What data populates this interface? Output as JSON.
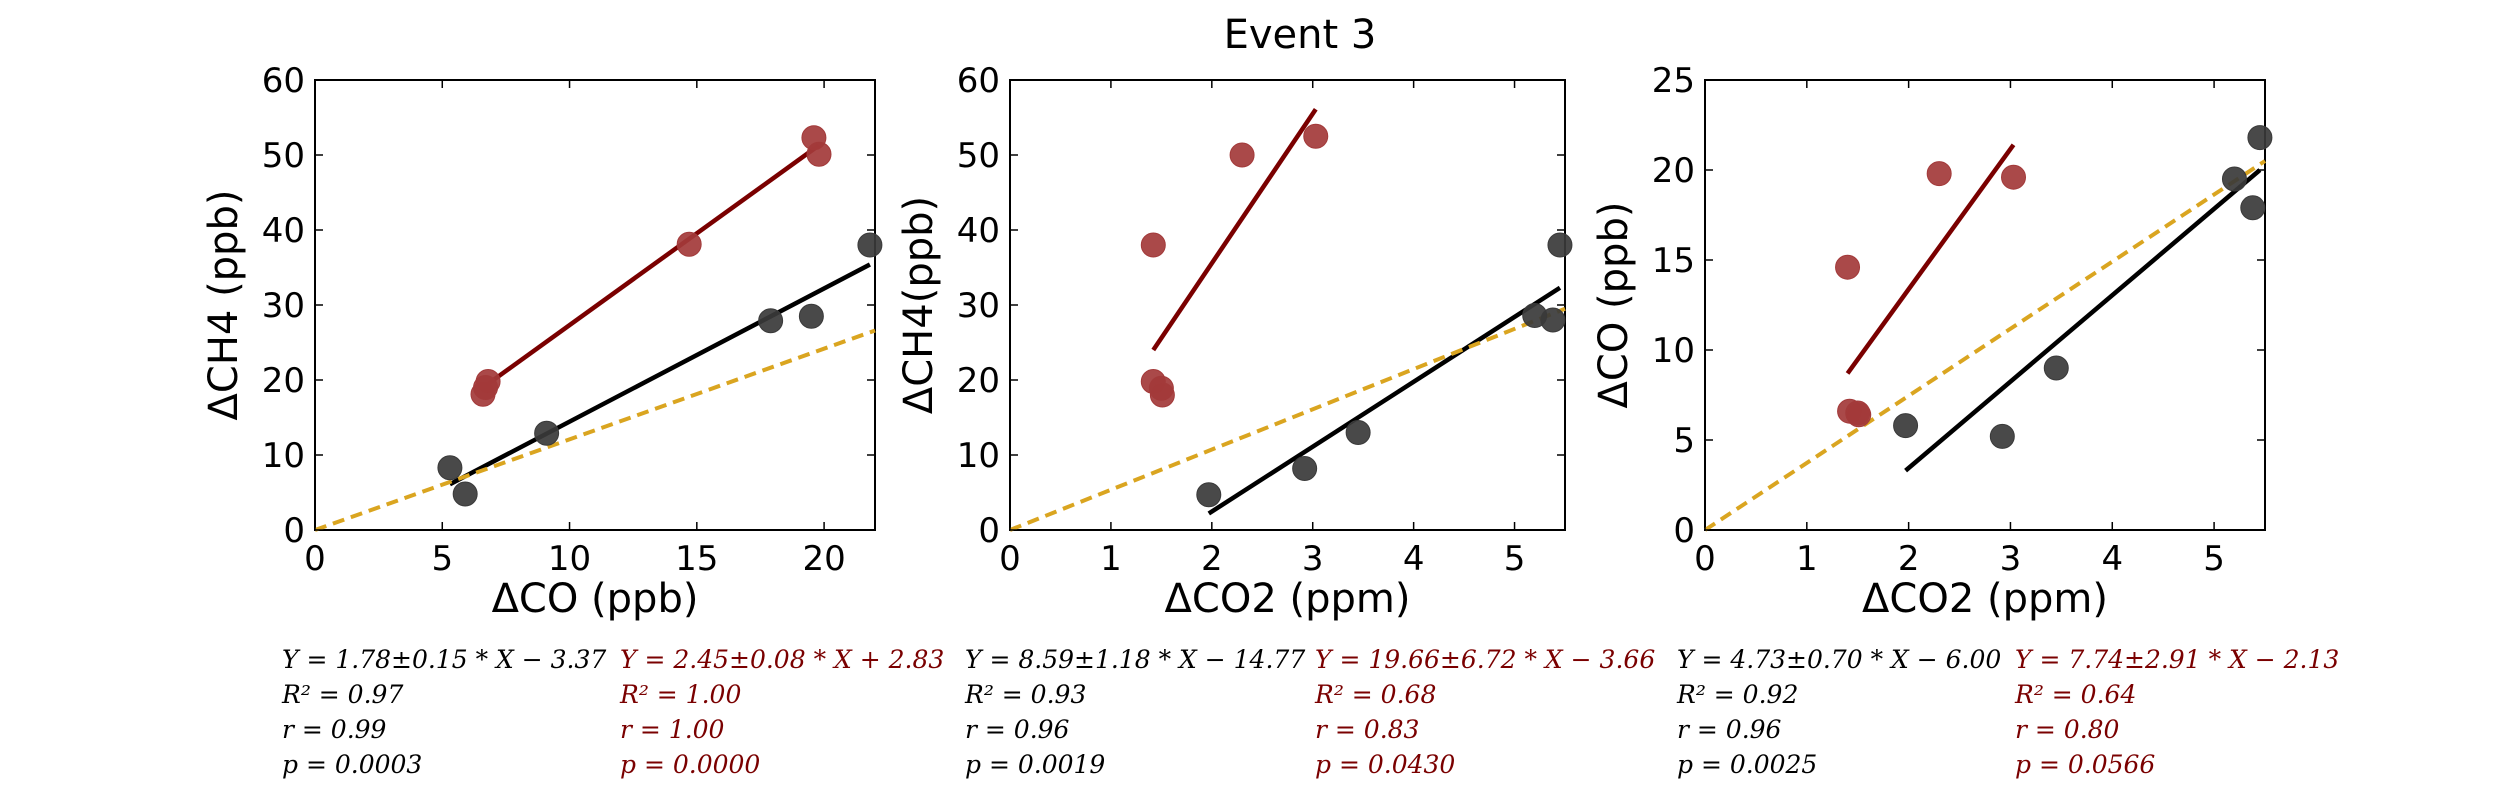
{
  "figure": {
    "title": "Event 3"
  },
  "colors": {
    "black_series": "#3a3a3a",
    "black_fit": "#000000",
    "red_series": "#a33a3a",
    "red_fit": "#7a0000",
    "ref_line": "#daa520"
  },
  "chart_data": [
    {
      "type": "scatter",
      "xlabel": "ΔCO (ppb)",
      "ylabel": "ΔCH4 (ppb)",
      "xlim": [
        0,
        22
      ],
      "ylim": [
        0,
        60
      ],
      "xticks": [
        "0",
        "5",
        "10",
        "15",
        "20"
      ],
      "yticks": [
        "0",
        "10",
        "20",
        "30",
        "40",
        "50",
        "60"
      ],
      "grid": false,
      "series": [
        {
          "color": "#3a3a3a",
          "points": [
            [
              5.3,
              8.3
            ],
            [
              5.9,
              4.8
            ],
            [
              9.1,
              12.9
            ],
            [
              17.9,
              27.9
            ],
            [
              19.5,
              28.5
            ],
            [
              21.8,
              38.0
            ]
          ]
        },
        {
          "color": "#a33a3a",
          "points": [
            [
              6.6,
              18.1
            ],
            [
              6.7,
              19.0
            ],
            [
              6.8,
              19.8
            ],
            [
              14.7,
              38.1
            ],
            [
              19.6,
              52.3
            ],
            [
              19.8,
              50.1
            ]
          ]
        }
      ],
      "fits": [
        {
          "color": "#000000",
          "x": [
            5.3,
            21.8
          ],
          "y": [
            6.1,
            35.4
          ]
        },
        {
          "color": "#7a0000",
          "x": [
            6.6,
            19.8
          ],
          "y": [
            19.0,
            51.3
          ]
        },
        {
          "color": "#daa520",
          "dashed": true,
          "x": [
            0,
            22
          ],
          "y": [
            0,
            26.6
          ]
        }
      ],
      "stats_black": [
        "Y = 1.78±0.15 * X − 3.37",
        "R² = 0.97",
        "r = 0.99",
        "p = 0.0003"
      ],
      "stats_red": [
        "Y = 2.45±0.08 * X + 2.83",
        "R² = 1.00",
        "r = 1.00",
        "p = 0.0000"
      ]
    },
    {
      "type": "scatter",
      "xlabel": "ΔCO2 (ppm)",
      "ylabel": "ΔCH4(ppb)",
      "xlim": [
        0,
        5.5
      ],
      "ylim": [
        0,
        60
      ],
      "xticks": [
        "0",
        "1",
        "2",
        "3",
        "4",
        "5"
      ],
      "yticks": [
        "0",
        "10",
        "20",
        "30",
        "40",
        "50",
        "60"
      ],
      "grid": false,
      "series": [
        {
          "color": "#3a3a3a",
          "points": [
            [
              1.97,
              4.7
            ],
            [
              2.92,
              8.2
            ],
            [
              3.45,
              13.0
            ],
            [
              5.2,
              28.6
            ],
            [
              5.38,
              28.0
            ],
            [
              5.45,
              38.0
            ]
          ]
        },
        {
          "color": "#a33a3a",
          "points": [
            [
              1.42,
              38.0
            ],
            [
              1.42,
              19.8
            ],
            [
              1.5,
              18.9
            ],
            [
              1.51,
              18.0
            ],
            [
              2.3,
              50.0
            ],
            [
              3.03,
              52.5
            ]
          ]
        }
      ],
      "fits": [
        {
          "color": "#000000",
          "x": [
            1.97,
            5.45
          ],
          "y": [
            2.2,
            32.3
          ]
        },
        {
          "color": "#7a0000",
          "x": [
            1.42,
            3.03
          ],
          "y": [
            24.0,
            56.1
          ]
        },
        {
          "color": "#daa520",
          "dashed": true,
          "x": [
            0,
            5.5
          ],
          "y": [
            0,
            29.5
          ]
        }
      ],
      "stats_black": [
        "Y = 8.59±1.18 * X − 14.77",
        "R² = 0.93",
        "r = 0.96",
        "p = 0.0019"
      ],
      "stats_red": [
        "Y = 19.66±6.72 * X − 3.66",
        "R² = 0.68",
        "r = 0.83",
        "p = 0.0430"
      ]
    },
    {
      "type": "scatter",
      "xlabel": "ΔCO2 (ppm)",
      "ylabel": "ΔCO (ppb)",
      "xlim": [
        0,
        5.5
      ],
      "ylim": [
        0,
        25
      ],
      "xticks": [
        "0",
        "1",
        "2",
        "3",
        "4",
        "5"
      ],
      "yticks": [
        "0",
        "5",
        "10",
        "15",
        "20",
        "25"
      ],
      "grid": false,
      "series": [
        {
          "color": "#3a3a3a",
          "points": [
            [
              1.97,
              5.8
            ],
            [
              2.92,
              5.2
            ],
            [
              3.45,
              9.0
            ],
            [
              5.2,
              19.5
            ],
            [
              5.38,
              17.9
            ],
            [
              5.45,
              21.8
            ]
          ]
        },
        {
          "color": "#a33a3a",
          "points": [
            [
              1.4,
              14.6
            ],
            [
              1.42,
              6.6
            ],
            [
              1.5,
              6.5
            ],
            [
              1.51,
              6.4
            ],
            [
              2.3,
              19.8
            ],
            [
              3.03,
              19.6
            ]
          ]
        }
      ],
      "fits": [
        {
          "color": "#000000",
          "x": [
            1.97,
            5.45
          ],
          "y": [
            3.3,
            20.0
          ]
        },
        {
          "color": "#7a0000",
          "x": [
            1.4,
            3.03
          ],
          "y": [
            8.7,
            21.4
          ]
        },
        {
          "color": "#daa520",
          "dashed": true,
          "x": [
            0,
            5.5
          ],
          "y": [
            0,
            20.5
          ]
        }
      ],
      "stats_black": [
        "Y = 4.73±0.70 * X − 6.00",
        "R² = 0.92",
        "r = 0.96",
        "p = 0.0025"
      ],
      "stats_red": [
        "Y = 7.74±2.91 * X − 2.13",
        "R² = 0.64",
        "r = 0.80",
        "p = 0.0566"
      ]
    }
  ]
}
